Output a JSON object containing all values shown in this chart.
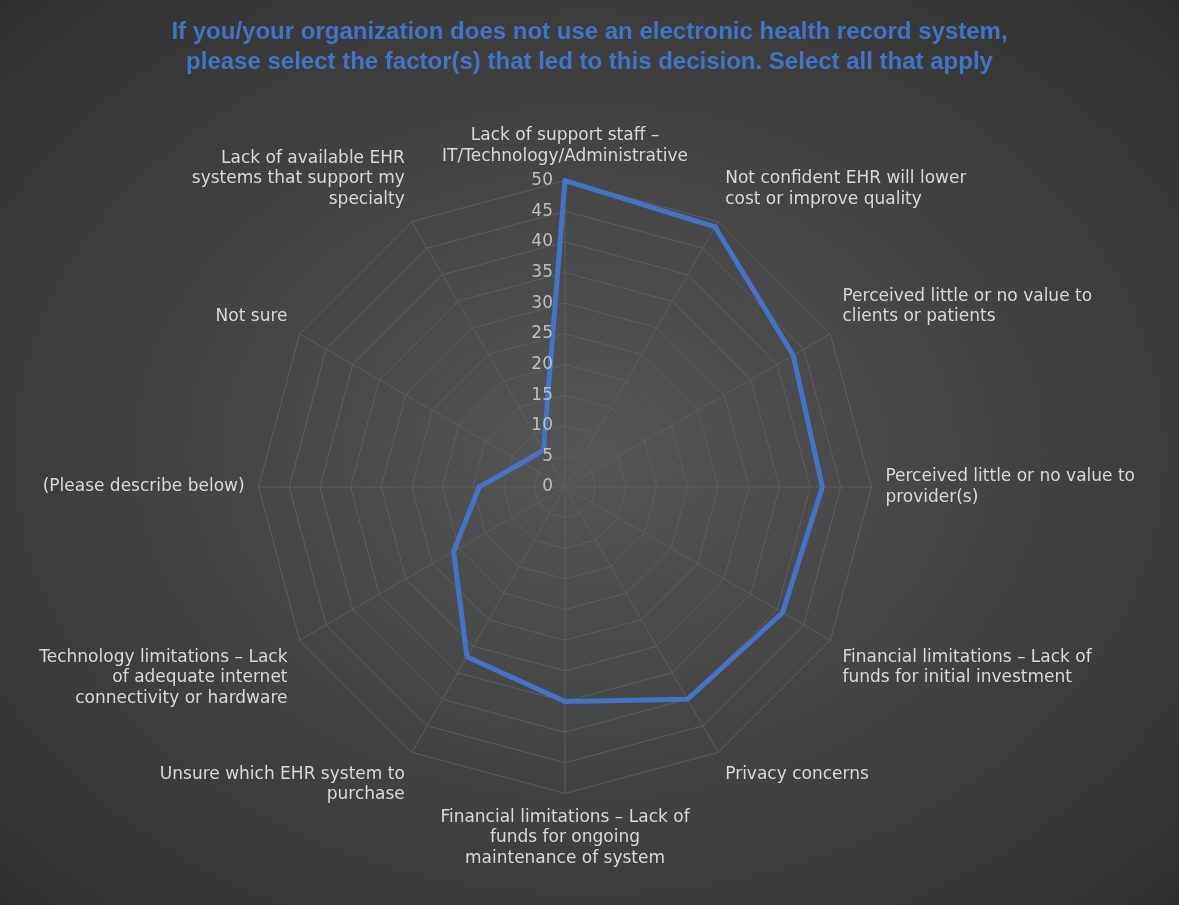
{
  "chart_data": {
    "type": "radar",
    "title": "If you/your organization does not use an electronic health record system, please select the factor(s) that led to this decision. Select all that apply",
    "categories": [
      "Lack of support staff – IT/Technology/Administrative",
      "Not confident EHR will lower cost or improve quality",
      "Perceived little or no value to clients or patients",
      "Perceived little or no value to provider(s)",
      "Financial limitations – Lack of funds for initial investment",
      "Privacy concerns",
      "Financial limitations – Lack of funds for ongoing maintenance of system",
      "Unsure which EHR system to purchase",
      "Technology limitations – Lack of adequate internet connectivity or hardware",
      "(Please describe below)",
      "Not sure",
      "Lack of available EHR systems that support my specialty"
    ],
    "series": [
      {
        "color": "#4472c4",
        "values": [
          50,
          49,
          43,
          42,
          41,
          40,
          35,
          32,
          21,
          14,
          8,
          7
        ]
      }
    ],
    "ylim": [
      0,
      50
    ],
    "yticks": [
      0,
      5,
      10,
      15,
      20,
      25,
      30,
      35,
      40,
      45,
      50
    ],
    "grid": true,
    "legend": false,
    "marker": "none"
  }
}
